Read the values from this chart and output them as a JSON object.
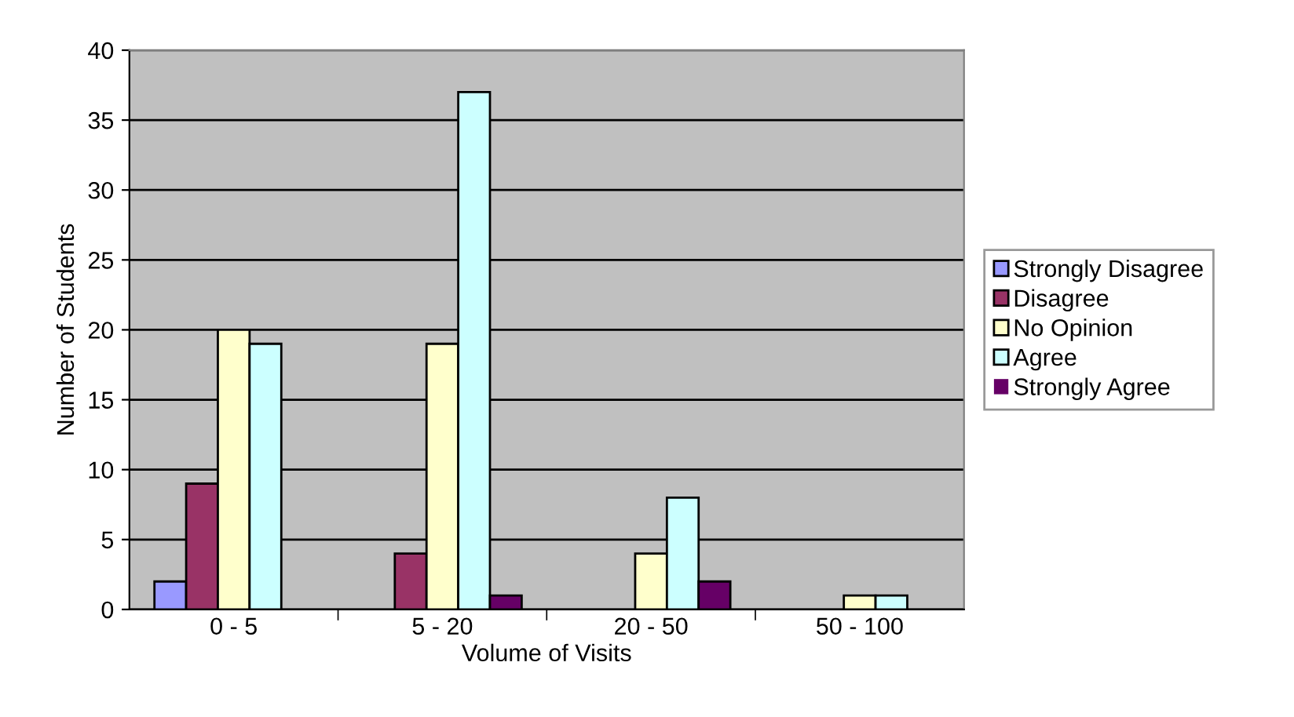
{
  "chart_data": {
    "type": "bar",
    "xlabel": "Volume of Visits",
    "ylabel": "Number of Students",
    "categories": [
      "0 - 5",
      "5 - 20",
      "20 - 50",
      "50 - 100"
    ],
    "series": [
      {
        "name": "Strongly Disagree",
        "color": "#9999ff",
        "values": [
          2,
          0,
          0,
          0
        ]
      },
      {
        "name": "Disagree",
        "color": "#993366",
        "values": [
          9,
          4,
          0,
          0
        ]
      },
      {
        "name": "No Opinion",
        "color": "#ffffcc",
        "values": [
          20,
          19,
          4,
          1
        ]
      },
      {
        "name": "Agree",
        "color": "#ccffff",
        "values": [
          19,
          37,
          8,
          1
        ]
      },
      {
        "name": "Strongly Agree",
        "color": "#660066",
        "values": [
          0,
          1,
          2,
          0
        ]
      }
    ],
    "ylim": [
      0,
      40
    ],
    "yticks": [
      0,
      5,
      10,
      15,
      20,
      25,
      30,
      35,
      40
    ],
    "grid": "y",
    "legend": "right"
  }
}
